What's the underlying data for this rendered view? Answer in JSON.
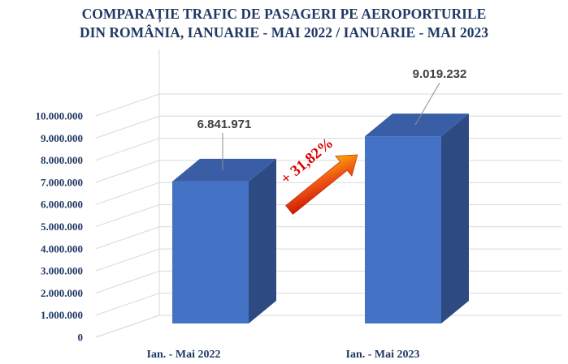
{
  "chart_data": {
    "type": "bar",
    "title_lines": [
      "COMPARAȚIE TRAFIC DE PASAGERI PE AEROPORTURILE",
      "DIN ROMÂNIA, IANUARIE - MAI 2022 / IANUARIE - MAI 2023"
    ],
    "categories": [
      "Ian. - Mai 2022",
      "Ian. - Mai 2023"
    ],
    "values": [
      6841971,
      9019232
    ],
    "value_labels": [
      "6.841.971",
      "9.019.232"
    ],
    "yticks": [
      "0",
      "1.000.000",
      "2.000.000",
      "3.000.000",
      "4.000.000",
      "5.000.000",
      "6.000.000",
      "7.000.000",
      "8.000.000",
      "9.000.000",
      "10.000.000"
    ],
    "ylim": [
      0,
      10000000
    ],
    "grid": true,
    "annotation": "+ 31,82%",
    "colors": {
      "bar_front": "#4472c4",
      "bar_side": "#2e4a83",
      "bar_top": "#3a5ea6",
      "arrow": "#e8380d",
      "annotation": "#e00000"
    }
  }
}
